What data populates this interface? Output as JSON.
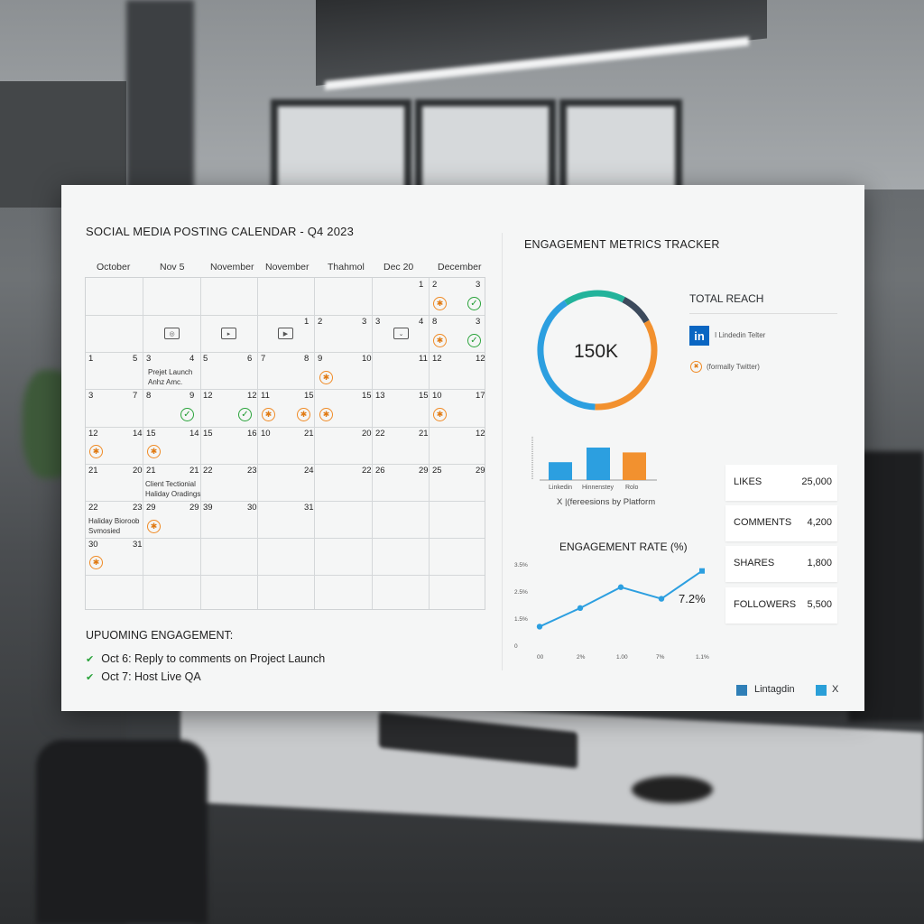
{
  "calendar": {
    "title": "SOCIAL MEDIA POSTING CALENDAR - Q4 2023",
    "col_headers": [
      "October",
      "Nov 5",
      "November",
      "November",
      "Thahmol",
      "Dec 20",
      "December"
    ],
    "rows": [
      [
        "",
        "",
        "",
        "",
        "",
        "1",
        "2|3"
      ],
      [
        "",
        "",
        "",
        "1",
        "2|3",
        "3|4",
        "8|3"
      ],
      [
        "1|5",
        "3|4",
        "5|6",
        "7|8",
        "9|10",
        "11",
        "12|12"
      ],
      [
        "3|7",
        "8|9",
        "12|12",
        "11|15",
        "15",
        "13|15",
        "10|17"
      ],
      [
        "12|14",
        "15|14",
        "15|16",
        "10|21",
        "20",
        "22|21",
        "12"
      ],
      [
        "21|20",
        "21|21",
        "22|23",
        "24",
        "22",
        "26|29",
        "25|29"
      ],
      [
        "22|23",
        "29|29",
        "39|30",
        "31",
        "",
        "",
        ""
      ],
      [
        "30|31",
        "",
        "",
        "",
        "",
        "",
        ""
      ],
      [
        "",
        "",
        "",
        "",
        "",
        "",
        ""
      ]
    ],
    "events": {
      "project_launch": "Prejet Launch",
      "project_launch_sub": "Anhz Amc.",
      "client_testimonial": "Client Tectionial",
      "client_testimonial_sub": "Haliday Oradings",
      "holiday_post": "Haliday Bioroob",
      "holiday_post_sub": "Svmosied"
    }
  },
  "upcoming": {
    "title": "UPUOMING ENGAGEMENT:",
    "items": [
      "Oct 6: Reply to comments on Project Launch",
      "Oct 7: Host Live QA"
    ]
  },
  "metrics": {
    "title": "ENGAGEMENT METRICS TRACKER",
    "total_reach_label": "TOTAL REACH",
    "total_reach_value": "150K",
    "linkedin_icon_text": "in",
    "platform_1": "I Lindedin Telter",
    "platform_2": "(formally Twitter)",
    "bar_chart_caption": "X |(fereesions by Platform",
    "bar_labels": [
      "Linkedin",
      "Hinnenstey",
      "Rolo"
    ],
    "rate_title": "ENGAGEMENT RATE (%)",
    "rate_y_ticks": [
      "3.5%",
      "2.5%",
      "1.5%",
      "0"
    ],
    "rate_x_ticks": [
      "00",
      "2%",
      "1.00",
      "7%",
      "1.1%"
    ],
    "rate_current": "7.2%",
    "stats": [
      {
        "label": "LIKES",
        "value": "25,000"
      },
      {
        "label": "COMMENTS",
        "value": "4,200"
      },
      {
        "label": "SHARES",
        "value": "1,800"
      },
      {
        "label": "FOLLOWERS",
        "value": "5,500"
      }
    ],
    "legend": [
      {
        "label": "Lintagdin",
        "color": "#2f7fb7"
      },
      {
        "label": "X",
        "color": "#2a9fd8"
      }
    ]
  },
  "colors": {
    "teal": "#23b39b",
    "orange": "#f2912f",
    "blue": "#2c9fe0",
    "navy": "#3c4a5c",
    "green": "#29a33a"
  },
  "chart_data": [
    {
      "type": "pie",
      "title": "TOTAL REACH",
      "center_label": "150K",
      "categories": [
        "Teal",
        "Navy",
        "Orange",
        "Blue"
      ],
      "values": [
        17,
        9,
        34,
        40
      ]
    },
    {
      "type": "bar",
      "categories": [
        "Linkedin",
        "Hinnenstey",
        "Rolo"
      ],
      "values": [
        22,
        40,
        34
      ],
      "ylim": [
        0,
        50
      ]
    },
    {
      "type": "line",
      "title": "ENGAGEMENT RATE (%)",
      "x": [
        0,
        1,
        2,
        3,
        4
      ],
      "values": [
        0.8,
        1.6,
        2.5,
        2.0,
        3.2
      ],
      "ylim": [
        0,
        3.5
      ],
      "annotation": "7.2%"
    }
  ]
}
